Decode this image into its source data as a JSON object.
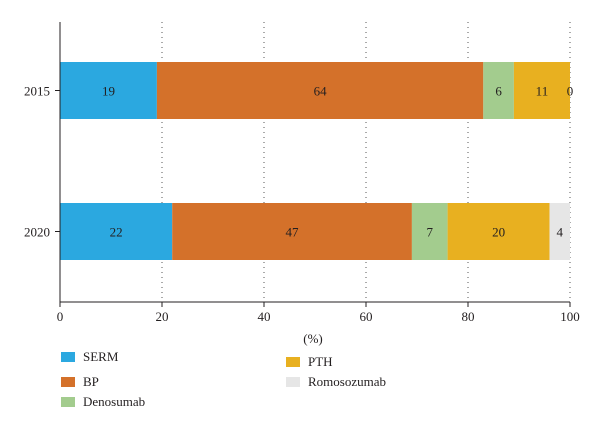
{
  "chart_data": {
    "type": "bar",
    "orientation": "horizontal",
    "stacked": true,
    "categories": [
      "2015",
      "2020"
    ],
    "series": [
      {
        "name": "SERM",
        "color": "#2ba8e0",
        "values": [
          19,
          22
        ]
      },
      {
        "name": "BP",
        "color": "#d4712a",
        "values": [
          64,
          47
        ]
      },
      {
        "name": "Denosumab",
        "color": "#a3cc8e",
        "values": [
          6,
          7
        ]
      },
      {
        "name": "PTH",
        "color": "#e8b020",
        "values": [
          11,
          20
        ]
      },
      {
        "name": "Romosozumab",
        "color": "#e6e6e6",
        "values": [
          0,
          4
        ]
      }
    ],
    "xlabel": "(%)",
    "xlim": [
      0,
      100
    ],
    "xticks": [
      "0",
      "20",
      "40",
      "60",
      "80",
      "100"
    ],
    "grid": "vertical dotted",
    "legend_position": "bottom"
  }
}
